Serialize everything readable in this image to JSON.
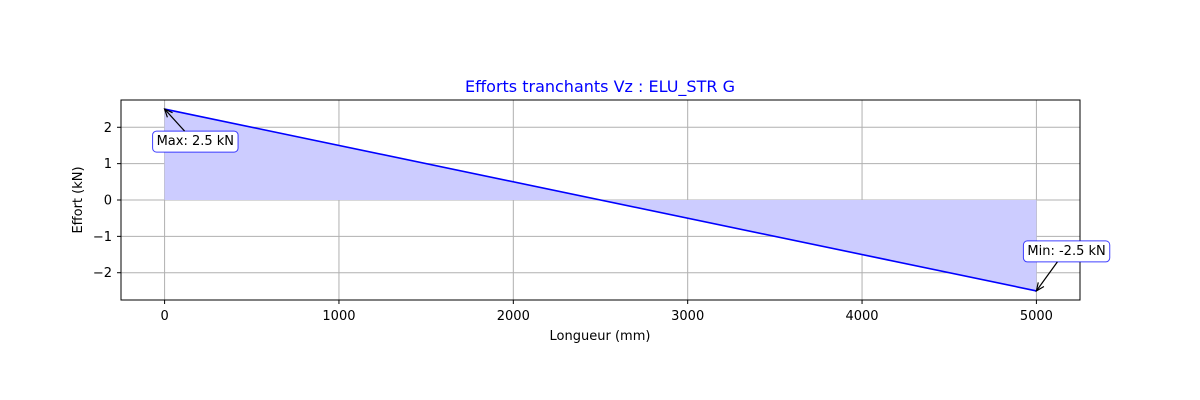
{
  "chart_data": {
    "type": "area",
    "title": "Efforts tranchants Vz : ELU_STR G",
    "title_color": "#0000ff",
    "xlabel": "Longueur (mm)",
    "ylabel": "Effort (kN)",
    "x": [
      0,
      5000
    ],
    "series": [
      {
        "values": [
          2.5,
          -2.5
        ],
        "color": "#0000ff",
        "fill_color": "#ccccff"
      }
    ],
    "xlim": [
      -250,
      5250
    ],
    "ylim": [
      -2.75,
      2.75
    ],
    "x_ticks": [
      0,
      1000,
      2000,
      3000,
      4000,
      5000
    ],
    "x_tick_labels": [
      "0",
      "1000",
      "2000",
      "3000",
      "4000",
      "5000"
    ],
    "y_ticks": [
      -2,
      -1,
      0,
      1,
      2
    ],
    "y_tick_labels": [
      "−2",
      "−1",
      "0",
      "1",
      "2"
    ],
    "grid": true,
    "annotations": [
      {
        "id": "max",
        "text": "Max: 2.5 kN",
        "x": 0,
        "y": 2.5,
        "placement": "below-right"
      },
      {
        "id": "min",
        "text": "Min: -2.5 kN",
        "x": 5000,
        "y": -2.5,
        "placement": "above"
      }
    ]
  }
}
